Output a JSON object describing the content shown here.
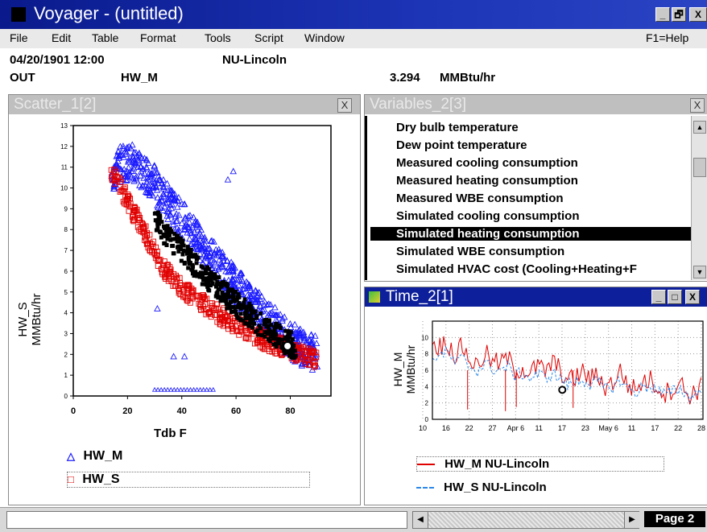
{
  "app": {
    "title": "Voyager - (untitled)",
    "controls": [
      "_",
      "🗗",
      "X"
    ]
  },
  "menu": {
    "items": [
      "File",
      "Edit",
      "Table",
      "Format",
      "Tools",
      "Script",
      "Window"
    ],
    "help": "F1=Help"
  },
  "info": {
    "datetime": "04/20/1901 12:00",
    "site": "NU-Lincoln",
    "mode": "OUT",
    "variable": "HW_M",
    "value": "3.294",
    "unit": "MMBtu/hr"
  },
  "scatter": {
    "title": "Scatter_1[2]",
    "close": "X",
    "xlabel": "Tdb F",
    "ylabel": [
      "HW_S",
      "MMBtu/hr"
    ],
    "legend": [
      "HW_M",
      "HW_S"
    ],
    "colors": {
      "hw_m": "#1a1aff",
      "hw_s": "#e00000"
    }
  },
  "variables": {
    "title": "Variables_2[3]",
    "close": "X",
    "items": [
      "Dry bulb temperature",
      "Dew point temperature",
      "Measured cooling consumption",
      "Measured heating consumption",
      "Measured WBE consumption",
      "Simulated cooling consumption",
      "Simulated heating consumption",
      "Simulated WBE consumption",
      "Simulated HVAC cost (Cooling+Heating+F"
    ],
    "selected_index": 6
  },
  "timeplot": {
    "title": "Time_2[1]",
    "controls": [
      "_",
      "□",
      "X"
    ],
    "ylabel": [
      "HW_M",
      "MMBtu/hr"
    ],
    "legend": [
      "HW_M NU-Lincoln",
      "HW_S NU-Lincoln"
    ]
  },
  "status": {
    "page": "Page 2"
  },
  "chart_data": [
    {
      "type": "scatter",
      "xlabel": "Tdb F",
      "ylabel": "HW_S MMBtu/hr",
      "xlim": [
        0,
        95
      ],
      "ylim": [
        0,
        13
      ],
      "x_ticks": [
        0,
        20,
        40,
        60,
        80
      ],
      "y_ticks": [
        0,
        1,
        2,
        3,
        4,
        5,
        6,
        7,
        8,
        9,
        10,
        11,
        12,
        13
      ],
      "legend_position": "bottom",
      "series": [
        {
          "name": "HW_M",
          "marker": "triangle",
          "x": [
            14,
            18,
            22,
            26,
            30,
            34,
            38,
            42,
            46,
            50,
            54,
            58,
            62,
            66,
            70,
            74,
            78,
            82,
            86,
            90
          ],
          "y": [
            10.7,
            11.3,
            11.3,
            10.9,
            10.3,
            9.5,
            8.9,
            8.3,
            7.6,
            6.9,
            6.3,
            5.7,
            5.1,
            4.5,
            4.0,
            3.5,
            3.0,
            2.6,
            2.3,
            2.1
          ]
        },
        {
          "name": "HW_S",
          "marker": "square",
          "x": [
            14,
            18,
            22,
            26,
            30,
            34,
            38,
            42,
            46,
            50,
            54,
            58,
            62,
            66,
            70,
            74,
            78,
            82,
            86,
            90
          ],
          "y": [
            10.9,
            9.9,
            8.9,
            7.9,
            6.9,
            6.0,
            5.5,
            5.0,
            4.6,
            4.2,
            3.9,
            3.6,
            3.3,
            3.0,
            2.7,
            2.5,
            2.3,
            2.1,
            1.9,
            1.8
          ]
        }
      ],
      "outliers_hw_m": [
        [
          31,
          4.2
        ],
        [
          37,
          1.9
        ],
        [
          41,
          1.9
        ],
        [
          57,
          10.4
        ],
        [
          59,
          10.8
        ]
      ]
    },
    {
      "type": "line",
      "ylabel": "HW_M MMBtu/hr",
      "ylim": [
        0,
        12
      ],
      "y_ticks": [
        0,
        2,
        4,
        6,
        8,
        10
      ],
      "x_tick_labels": [
        "10",
        "16",
        "22",
        "27",
        "Apr 6",
        "11",
        "17",
        "23",
        "May 6",
        "11",
        "17",
        "22",
        "28"
      ],
      "legend_position": "bottom",
      "series": [
        {
          "name": "HW_M NU-Lincoln",
          "style": "solid",
          "color": "#e00000",
          "values": [
            9.2,
            8.9,
            9.5,
            7.8,
            9.0,
            7.2,
            6.5,
            8.1,
            7.0,
            6.8,
            7.5,
            6.0,
            6.2,
            5.6,
            6.5,
            5.8,
            6.9,
            6.1,
            4.6,
            5.1,
            5.8,
            4.9,
            5.4,
            4.0,
            4.5,
            5.9,
            4.2,
            3.6,
            4.6,
            4.8,
            3.9,
            3.2,
            3.8,
            4.5,
            2.9,
            3.4,
            4.1
          ]
        },
        {
          "name": "HW_S NU-Lincoln",
          "style": "dashed",
          "color": "#2a86e8",
          "values": [
            7.6,
            7.9,
            8.2,
            6.9,
            7.4,
            6.4,
            6.0,
            6.8,
            6.2,
            6.0,
            6.4,
            5.4,
            5.6,
            5.0,
            5.5,
            5.1,
            5.6,
            5.0,
            4.2,
            4.5,
            4.9,
            4.3,
            4.6,
            3.7,
            4.0,
            4.8,
            3.8,
            3.3,
            3.9,
            4.1,
            3.5,
            3.0,
            3.4,
            3.8,
            2.8,
            3.1,
            3.6
          ]
        }
      ]
    }
  ]
}
